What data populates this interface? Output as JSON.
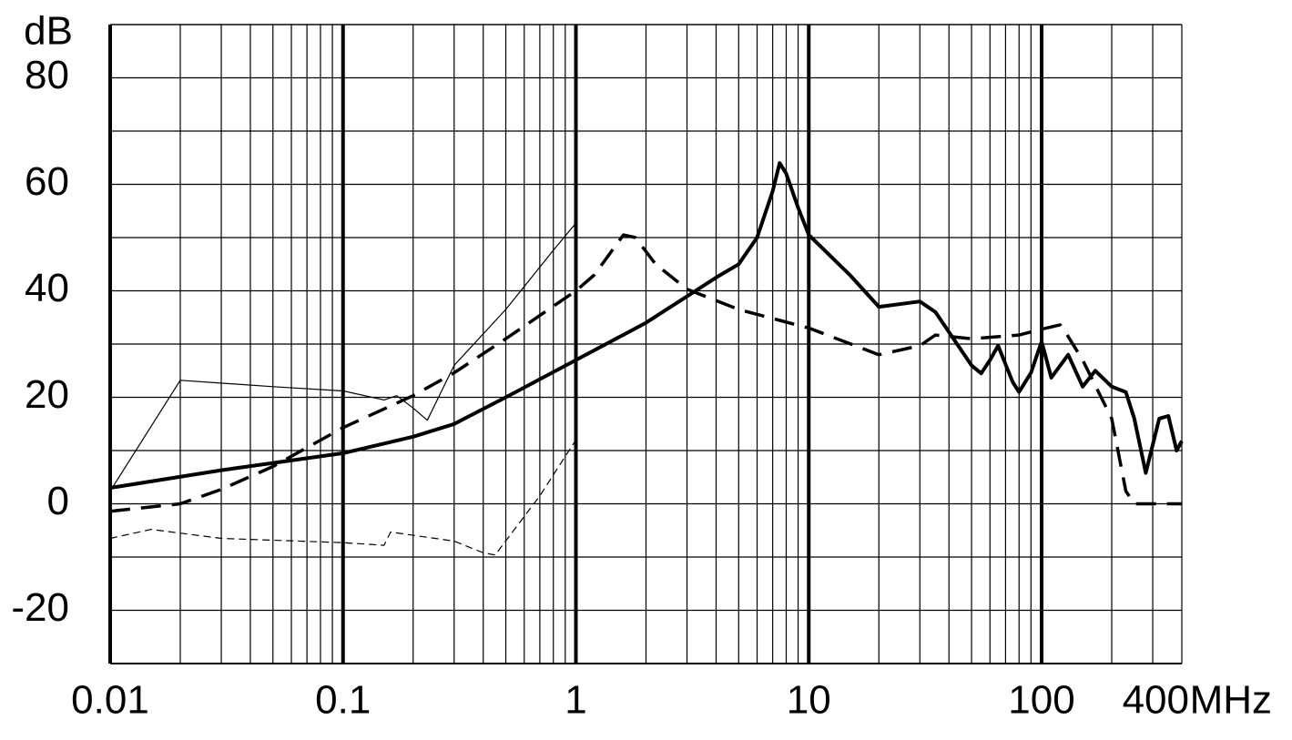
{
  "chart_data": {
    "type": "line",
    "x_scale": "log",
    "grid": true,
    "y_label": "dB",
    "x_label": "MHz",
    "xlim": [
      0.01,
      400
    ],
    "xticks": [
      0.01,
      0.1,
      1,
      10,
      100,
      400
    ],
    "ylim": [
      -30,
      90
    ],
    "yticks": [
      -20,
      0,
      20,
      40,
      60,
      80
    ],
    "series": [
      {
        "color": "#000000",
        "line_style": "solid",
        "line_width": 4,
        "x": [
          0.01,
          0.03,
          0.1,
          0.2,
          0.3,
          0.5,
          1,
          2,
          4,
          5,
          6,
          7,
          7.5,
          8,
          9,
          10,
          15,
          20,
          30,
          35,
          50,
          55,
          60,
          65,
          75,
          80,
          90,
          100,
          110,
          130,
          150,
          170,
          200,
          230,
          250,
          280,
          320,
          350,
          380,
          400
        ],
        "values": [
          3,
          6.3,
          9.5,
          12.6,
          15,
          20,
          27,
          34,
          42.5,
          45,
          50,
          58.7,
          64,
          62,
          55.6,
          50.5,
          43,
          37,
          38,
          36,
          26,
          24.5,
          27,
          29.7,
          22.9,
          21,
          24.6,
          30.5,
          23.7,
          28,
          22,
          25,
          22,
          21,
          16,
          5.8,
          16,
          16.5,
          10,
          11.8
        ]
      },
      {
        "color": "#000000",
        "line_style": "dashed",
        "line_width": 3.5,
        "x": [
          0.01,
          0.02,
          0.03,
          0.05,
          0.1,
          0.2,
          0.3,
          0.5,
          1,
          1.2,
          1.6,
          1.8,
          2.2,
          3,
          5,
          10,
          20,
          30,
          35,
          50,
          80,
          100,
          120,
          130,
          150,
          200,
          230,
          250,
          400
        ],
        "values": [
          -1.4,
          0,
          2.7,
          7,
          14.3,
          20.3,
          24.6,
          31,
          40,
          43,
          50.5,
          50,
          45,
          40.3,
          36.5,
          33,
          28,
          29.7,
          31.7,
          31,
          31.7,
          32.8,
          33.6,
          31.4,
          27,
          16,
          2.4,
          0,
          0
        ]
      },
      {
        "color": "#000000",
        "line_style": "solid",
        "line_width": 1.2,
        "x": [
          0.01,
          0.02,
          0.05,
          0.1,
          0.15,
          0.17,
          0.2,
          0.23,
          0.3,
          0.5,
          0.8,
          1
        ],
        "values": [
          2.4,
          23.2,
          22,
          21.2,
          19.5,
          20.3,
          18,
          15.7,
          26,
          36.5,
          47.6,
          52.7
        ]
      },
      {
        "color": "#000000",
        "line_style": "dashed",
        "line_width": 1.2,
        "x": [
          0.01,
          0.015,
          0.03,
          0.1,
          0.15,
          0.16,
          0.3,
          0.4,
          0.45,
          0.7,
          1
        ],
        "values": [
          -6.5,
          -4.8,
          -6.5,
          -7.3,
          -7.8,
          -5.3,
          -7,
          -9.2,
          -9.6,
          1.5,
          12
        ]
      }
    ]
  }
}
